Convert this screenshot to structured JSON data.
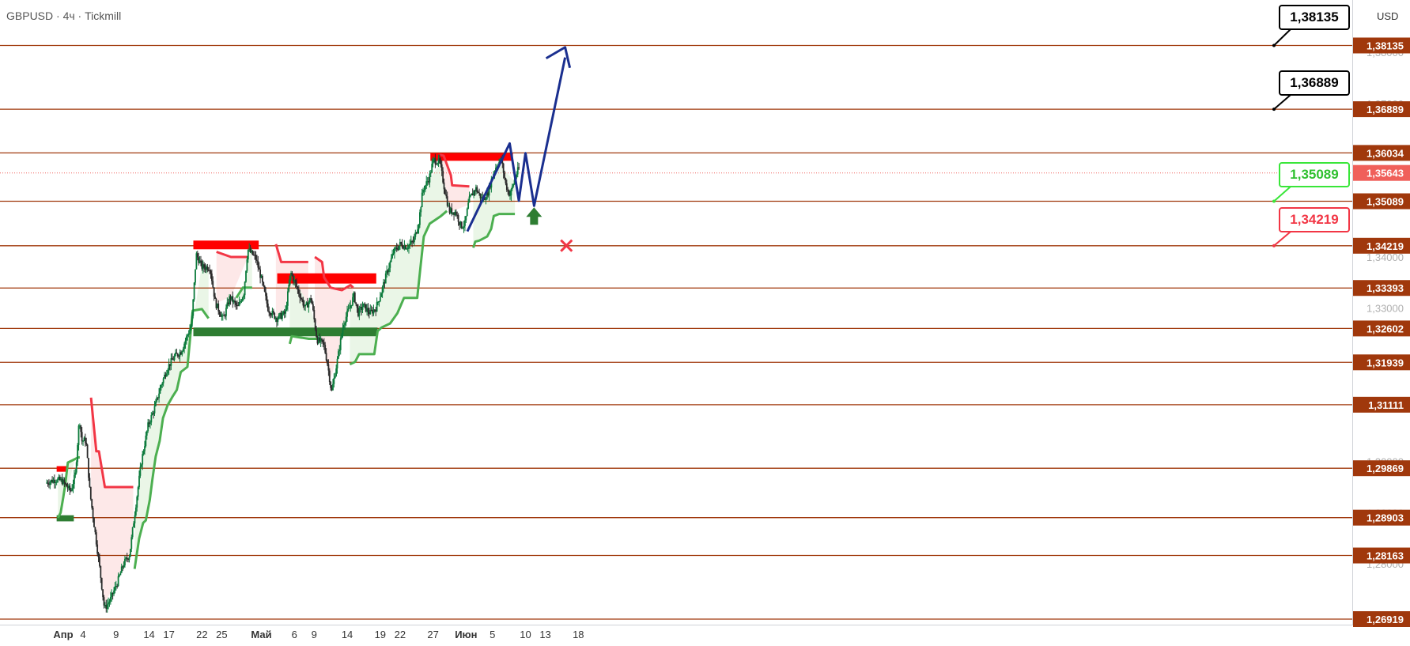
{
  "header": {
    "symbol": "GBPUSD",
    "interval": "4ч",
    "broker": "Tickmill",
    "sep": " · "
  },
  "currency": "USD",
  "colors": {
    "level_line": "#a0380c",
    "level_label_bg": "#a0380c",
    "current_bg": "#f0605a",
    "up_candle": "#0b7a3b",
    "down_candle": "#2a2a2a",
    "supertrend_up": "#4caf50",
    "supertrend_down": "#f23645",
    "fill_up": "#e8f5e4",
    "fill_down": "#fde6e6",
    "resistance_zone": "#ff0000",
    "support_zone": "#2e7d32",
    "projection": "#1a2f8f",
    "target_label_border": "#000000",
    "bull_label_border": "#39e639",
    "bull_label_text": "#2fc02f",
    "bear_label_border": "#f23645",
    "bear_label_text": "#f23645",
    "arrow_up": "#2e7d32",
    "cross": "#f23645"
  },
  "chart_data": {
    "type": "candlestick",
    "ylim": [
      1.266,
      1.3865
    ],
    "levels": [
      1.38135,
      1.36889,
      1.36034,
      1.35089,
      1.34219,
      1.33393,
      1.32602,
      1.31939,
      1.31111,
      1.29869,
      1.28903,
      1.28163,
      1.26919
    ],
    "level_labels": [
      "1,38135",
      "1,36889",
      "1,36034",
      "1,35089",
      "1,34219",
      "1,33393",
      "1,32602",
      "1,31939",
      "1,31111",
      "1,29869",
      "1,28903",
      "1,28163",
      "1,26919"
    ],
    "current_price": 1.35643,
    "current_label": "1,35643",
    "axis_ticks": [
      {
        "v": 1.38,
        "label": "1,38000"
      },
      {
        "v": 1.37,
        "label": "1,37000"
      },
      {
        "v": 1.34,
        "label": "1,34000"
      },
      {
        "v": 1.33,
        "label": "1,33000"
      },
      {
        "v": 1.3,
        "label": "1,30000"
      },
      {
        "v": 1.29,
        "label": "1,29000"
      },
      {
        "v": 1.28,
        "label": "1,28000"
      }
    ],
    "x_ticks": [
      {
        "label": "Апр",
        "d": 0
      },
      {
        "label": "4",
        "d": 3
      },
      {
        "label": "9",
        "d": 8
      },
      {
        "label": "14",
        "d": 13
      },
      {
        "label": "17",
        "d": 16
      },
      {
        "label": "22",
        "d": 21
      },
      {
        "label": "25",
        "d": 24
      },
      {
        "label": "Май",
        "d": 30
      },
      {
        "label": "6",
        "d": 35
      },
      {
        "label": "9",
        "d": 38
      },
      {
        "label": "14",
        "d": 43
      },
      {
        "label": "19",
        "d": 48
      },
      {
        "label": "22",
        "d": 51
      },
      {
        "label": "27",
        "d": 56
      },
      {
        "label": "Июн",
        "d": 61
      },
      {
        "label": "5",
        "d": 65
      },
      {
        "label": "10",
        "d": 70
      },
      {
        "label": "13",
        "d": 73
      },
      {
        "label": "18",
        "d": 78
      }
    ],
    "price_path": [
      [
        -2.5,
        1.2958
      ],
      [
        -1,
        1.2965
      ],
      [
        0,
        1.2962
      ],
      [
        1.3,
        1.2942
      ],
      [
        2,
        1.2975
      ],
      [
        2.6,
        1.3085
      ],
      [
        3,
        1.304
      ],
      [
        3.6,
        1.3042
      ],
      [
        4.2,
        1.294
      ],
      [
        4.8,
        1.288
      ],
      [
        5.6,
        1.28
      ],
      [
        6.4,
        1.2712
      ],
      [
        7.3,
        1.273
      ],
      [
        8.4,
        1.2765
      ],
      [
        9.3,
        1.28
      ],
      [
        10.2,
        1.2818
      ],
      [
        11,
        1.29
      ],
      [
        12,
        1.3
      ],
      [
        13,
        1.307
      ],
      [
        14,
        1.3105
      ],
      [
        15,
        1.315
      ],
      [
        16,
        1.3185
      ],
      [
        17,
        1.3205
      ],
      [
        18,
        1.3215
      ],
      [
        19.6,
        1.3268
      ],
      [
        20.3,
        1.3405
      ],
      [
        21.2,
        1.338
      ],
      [
        22.4,
        1.338
      ],
      [
        23.2,
        1.331
      ],
      [
        24.4,
        1.3278
      ],
      [
        25.4,
        1.3322
      ],
      [
        26.6,
        1.33
      ],
      [
        27.5,
        1.333
      ],
      [
        28.1,
        1.3415
      ],
      [
        29.3,
        1.3398
      ],
      [
        30.1,
        1.336
      ],
      [
        31.2,
        1.3298
      ],
      [
        32.5,
        1.328
      ],
      [
        33.8,
        1.329
      ],
      [
        34.6,
        1.337
      ],
      [
        35.6,
        1.3338
      ],
      [
        36.8,
        1.33
      ],
      [
        37.7,
        1.332
      ],
      [
        38.6,
        1.3238
      ],
      [
        39.6,
        1.323
      ],
      [
        40.2,
        1.319
      ],
      [
        40.8,
        1.3135
      ],
      [
        41.7,
        1.32
      ],
      [
        42.6,
        1.327
      ],
      [
        43.5,
        1.33
      ],
      [
        44.2,
        1.3325
      ],
      [
        44.8,
        1.329
      ],
      [
        45.6,
        1.3305
      ],
      [
        46.6,
        1.329
      ],
      [
        47.5,
        1.33
      ],
      [
        48.3,
        1.333
      ],
      [
        49.2,
        1.337
      ],
      [
        50.2,
        1.341
      ],
      [
        51.2,
        1.3425
      ],
      [
        52.2,
        1.342
      ],
      [
        53.2,
        1.343
      ],
      [
        54,
        1.3468
      ],
      [
        54.6,
        1.353
      ],
      [
        55.6,
        1.3555
      ],
      [
        56.2,
        1.359
      ],
      [
        57.2,
        1.3585
      ],
      [
        57.8,
        1.354
      ],
      [
        58.6,
        1.349
      ],
      [
        59.6,
        1.3488
      ],
      [
        60.4,
        1.346
      ],
      [
        61,
        1.3465
      ],
      [
        61.6,
        1.351
      ],
      [
        62.6,
        1.3535
      ],
      [
        63.6,
        1.3512
      ],
      [
        64.4,
        1.3522
      ],
      [
        65.2,
        1.356
      ],
      [
        65.8,
        1.358
      ],
      [
        66.5,
        1.359
      ],
      [
        67.2,
        1.354
      ],
      [
        67.8,
        1.352
      ],
      [
        68.6,
        1.3555
      ],
      [
        69.1,
        1.3572
      ]
    ],
    "supertrend_down": [
      [
        [
          4.2,
          1.3125
        ],
        [
          5,
          1.302
        ],
        [
          5.4,
          1.302
        ],
        [
          6.3,
          1.295
        ],
        [
          10,
          1.295
        ],
        [
          10.6,
          1.295
        ]
      ],
      [
        [
          23.2,
          1.341
        ],
        [
          25.4,
          1.34
        ],
        [
          28,
          1.34
        ]
      ],
      [
        [
          32.2,
          1.3425
        ],
        [
          33,
          1.339
        ],
        [
          35,
          1.339
        ],
        [
          37.1,
          1.339
        ]
      ],
      [
        [
          38.1,
          1.34
        ],
        [
          39.2,
          1.339
        ],
        [
          39.5,
          1.336
        ],
        [
          40.5,
          1.334
        ],
        [
          42.2,
          1.3335
        ],
        [
          43.5,
          1.3345
        ],
        [
          43.9,
          1.334
        ]
      ],
      [
        [
          57,
          1.36
        ],
        [
          57.6,
          1.3598
        ],
        [
          58.7,
          1.356
        ],
        [
          58.9,
          1.354
        ],
        [
          61.5,
          1.3538
        ]
      ]
    ],
    "supertrend_up": [
      [
        [
          -0.8,
          1.289
        ],
        [
          -0.4,
          1.29
        ],
        [
          0,
          1.293
        ],
        [
          0.3,
          1.2955
        ],
        [
          0.7,
          1.2998
        ],
        [
          2.3,
          1.3008
        ],
        [
          2.5,
          1.3008
        ]
      ],
      [
        [
          10.8,
          1.279
        ],
        [
          11.5,
          1.285
        ],
        [
          12.1,
          1.288
        ],
        [
          12.5,
          1.2885
        ],
        [
          13.1,
          1.2925
        ],
        [
          13.5,
          1.2965
        ],
        [
          14,
          1.301
        ],
        [
          14.6,
          1.304
        ],
        [
          15.1,
          1.3085
        ],
        [
          15.8,
          1.311
        ],
        [
          16.6,
          1.3128
        ],
        [
          17.2,
          1.314
        ],
        [
          17.8,
          1.3175
        ],
        [
          18.8,
          1.3185
        ],
        [
          19.6,
          1.3295
        ],
        [
          21,
          1.3298
        ],
        [
          22,
          1.328
        ]
      ],
      [
        [
          26.2,
          1.332
        ],
        [
          27.2,
          1.334
        ],
        [
          28.2,
          1.334
        ],
        [
          28.6,
          1.334
        ]
      ],
      [
        [
          34.3,
          1.323
        ],
        [
          34.6,
          1.3245
        ],
        [
          37.2,
          1.324
        ],
        [
          39,
          1.324
        ]
      ],
      [
        [
          43.4,
          1.319
        ],
        [
          44.2,
          1.3195
        ],
        [
          44.8,
          1.321
        ],
        [
          45.5,
          1.321
        ],
        [
          46.4,
          1.321
        ],
        [
          47.1,
          1.321
        ],
        [
          47.6,
          1.3255
        ],
        [
          48.2,
          1.3262
        ],
        [
          49.5,
          1.327
        ],
        [
          50.6,
          1.329
        ],
        [
          51.6,
          1.332
        ],
        [
          53.6,
          1.332
        ],
        [
          54.1,
          1.338
        ],
        [
          54.6,
          1.344
        ],
        [
          55.5,
          1.3465
        ],
        [
          57.2,
          1.348
        ],
        [
          58.1,
          1.349
        ]
      ],
      [
        [
          62.1,
          1.3418
        ],
        [
          62.4,
          1.343
        ],
        [
          63,
          1.3432
        ],
        [
          64.2,
          1.344
        ],
        [
          64.8,
          1.3455
        ],
        [
          65.2,
          1.348
        ],
        [
          66,
          1.3484
        ],
        [
          68.4,
          1.3484
        ]
      ]
    ],
    "zones": [
      {
        "kind": "resistance",
        "x0": -1,
        "x1": 0.5,
        "top": 1.2991,
        "bottom": 1.298
      },
      {
        "kind": "support",
        "x0": -1,
        "x1": 1.6,
        "top": 1.2895,
        "bottom": 1.2883
      },
      {
        "kind": "resistance",
        "x0": 19.7,
        "x1": 29.6,
        "top": 1.3432,
        "bottom": 1.3415
      },
      {
        "kind": "resistance",
        "x0": 32.4,
        "x1": 47.4,
        "top": 1.3368,
        "bottom": 1.3348
      },
      {
        "kind": "support",
        "x0": 19.7,
        "x1": 47.6,
        "top": 1.3262,
        "bottom": 1.3245
      },
      {
        "kind": "resistance",
        "x0": 55.6,
        "x1": 68.1,
        "top": 1.3603,
        "bottom": 1.3588
      }
    ],
    "projection": [
      [
        61.2,
        1.345
      ],
      [
        67.6,
        1.3622
      ],
      [
        69,
        1.351
      ],
      [
        70,
        1.3603
      ],
      [
        71.3,
        1.35
      ],
      [
        76,
        1.379
      ]
    ],
    "projection_arrow": {
      "from": [
        75.2,
        1.3777
      ],
      "to": [
        76,
        1.381
      ]
    },
    "bull_arrow": {
      "d": 71.3,
      "v": 1.3463
    },
    "cross": {
      "d": 76.2,
      "v": 1.3422
    },
    "callouts": [
      {
        "label": "1,38135",
        "v": 1.38135,
        "kind": "target"
      },
      {
        "label": "1,36889",
        "v": 1.36889,
        "kind": "target"
      },
      {
        "label": "1,35089",
        "v": 1.35089,
        "kind": "bull"
      },
      {
        "label": "1,34219",
        "v": 1.34219,
        "kind": "bear"
      }
    ]
  }
}
